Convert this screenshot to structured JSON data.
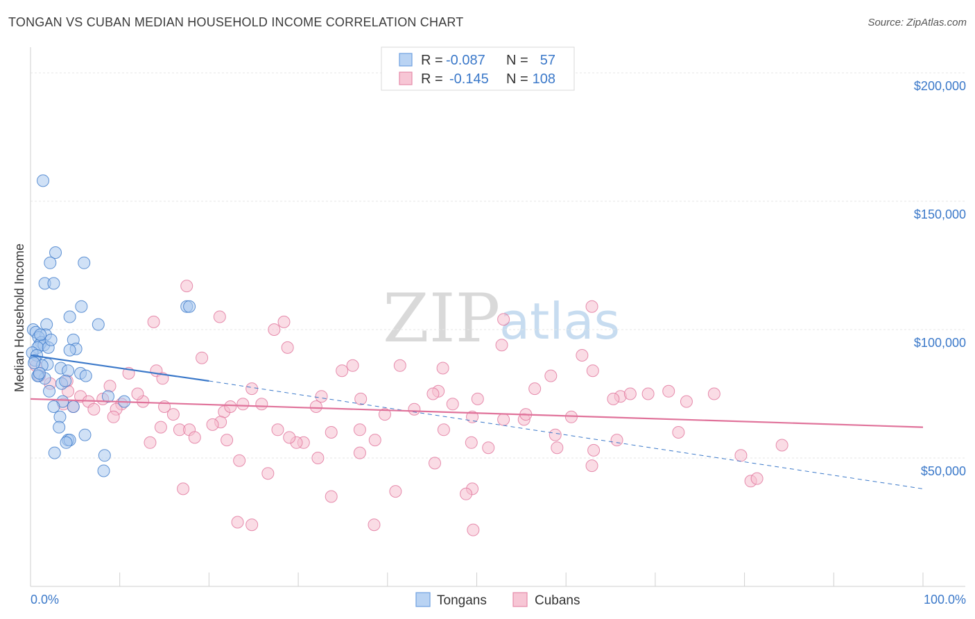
{
  "header": {
    "title": "TONGAN VS CUBAN MEDIAN HOUSEHOLD INCOME CORRELATION CHART",
    "source": "Source: ZipAtlas.com"
  },
  "watermark": {
    "zip": "ZIP",
    "atlas": "atlas"
  },
  "legend": {
    "rows": [
      {
        "r_label": "R =",
        "r_value": "-0.087",
        "n_label": "N =",
        "n_value": "57",
        "color": "#6fa0e0",
        "fill": "#b9d3f3"
      },
      {
        "r_label": "R =",
        "r_value": "-0.145",
        "n_label": "N =",
        "n_value": "108",
        "color": "#e58aa9",
        "fill": "#f7c6d5"
      }
    ]
  },
  "bottom_legend": {
    "series1": "Tongans",
    "series2": "Cubans"
  },
  "chart_data": {
    "type": "scatter",
    "title": "TONGAN VS CUBAN MEDIAN HOUSEHOLD INCOME CORRELATION CHART",
    "xlabel": "",
    "ylabel": "Median Household Income",
    "xlim": [
      0,
      100
    ],
    "ylim": [
      0,
      210000
    ],
    "x_tick_labels": {
      "left": "0.0%",
      "right": "100.0%"
    },
    "y_ticks": [
      {
        "value": 50000,
        "label": "$50,000"
      },
      {
        "value": 100000,
        "label": "$100,000"
      },
      {
        "value": 150000,
        "label": "$150,000"
      },
      {
        "value": 200000,
        "label": "$200,000"
      }
    ],
    "series": [
      {
        "name": "Tongans",
        "color": "#3a78c9",
        "fill": "#aac8ef",
        "trend": {
          "solid": [
            [
              0,
              90000
            ],
            [
              20,
              80000
            ]
          ],
          "dashed": [
            [
              20,
              80000
            ],
            [
              100,
              38000
            ]
          ]
        },
        "points": [
          [
            1.4,
            158000
          ],
          [
            2.8,
            130000
          ],
          [
            2.2,
            126000
          ],
          [
            6.0,
            126000
          ],
          [
            1.6,
            118000
          ],
          [
            2.6,
            118000
          ],
          [
            5.7,
            109000
          ],
          [
            17.5,
            109000
          ],
          [
            17.8,
            109000
          ],
          [
            4.4,
            105000
          ],
          [
            1.8,
            102000
          ],
          [
            7.6,
            102000
          ],
          [
            0.3,
            100000
          ],
          [
            0.6,
            99000
          ],
          [
            1.7,
            98000
          ],
          [
            0.9,
            97000
          ],
          [
            4.8,
            96000
          ],
          [
            1.2,
            95000
          ],
          [
            1.0,
            94000
          ],
          [
            1.5,
            94000
          ],
          [
            0.8,
            93000
          ],
          [
            2.0,
            93000
          ],
          [
            5.1,
            92500
          ],
          [
            4.4,
            92000
          ],
          [
            0.2,
            91000
          ],
          [
            0.7,
            90000
          ],
          [
            0.5,
            88000
          ],
          [
            1.9,
            86500
          ],
          [
            1.3,
            86000
          ],
          [
            3.4,
            85000
          ],
          [
            4.2,
            84000
          ],
          [
            5.6,
            83000
          ],
          [
            6.2,
            82000
          ],
          [
            0.9,
            82000
          ],
          [
            1.6,
            81000
          ],
          [
            3.5,
            79000
          ],
          [
            2.1,
            76000
          ],
          [
            8.7,
            74000
          ],
          [
            10.5,
            72000
          ],
          [
            3.6,
            72000
          ],
          [
            2.6,
            70000
          ],
          [
            4.8,
            70000
          ],
          [
            3.3,
            66000
          ],
          [
            3.2,
            62000
          ],
          [
            6.1,
            59000
          ],
          [
            4.2,
            57000
          ],
          [
            4.4,
            57000
          ],
          [
            4.0,
            56000
          ],
          [
            2.7,
            52000
          ],
          [
            8.3,
            51000
          ],
          [
            8.2,
            45000
          ],
          [
            0.8,
            82000
          ],
          [
            1.1,
            98000
          ],
          [
            2.3,
            96000
          ],
          [
            1.0,
            83000
          ],
          [
            3.9,
            80000
          ],
          [
            0.4,
            87000
          ]
        ]
      },
      {
        "name": "Cubans",
        "color": "#e0729a",
        "fill": "#f6bfd0",
        "trend": {
          "solid": [
            [
              0,
              73000
            ],
            [
              100,
              62000
            ]
          ]
        },
        "points": [
          [
            17.5,
            117000
          ],
          [
            62.9,
            109000
          ],
          [
            21.2,
            105000
          ],
          [
            13.8,
            103000
          ],
          [
            28.4,
            103000
          ],
          [
            53.0,
            104000
          ],
          [
            27.3,
            100000
          ],
          [
            28.8,
            93000
          ],
          [
            52.8,
            94000
          ],
          [
            61.8,
            90000
          ],
          [
            19.2,
            89000
          ],
          [
            36.1,
            86000
          ],
          [
            46.2,
            85000
          ],
          [
            34.9,
            84000
          ],
          [
            11.0,
            83000
          ],
          [
            14.1,
            84000
          ],
          [
            63.0,
            84000
          ],
          [
            58.3,
            82000
          ],
          [
            4.1,
            80000
          ],
          [
            14.8,
            81000
          ],
          [
            0.6,
            86000
          ],
          [
            1.0,
            82000
          ],
          [
            2.2,
            79000
          ],
          [
            24.8,
            77000
          ],
          [
            45.7,
            76000
          ],
          [
            45.1,
            75000
          ],
          [
            32.6,
            74000
          ],
          [
            37.0,
            73000
          ],
          [
            66.1,
            74000
          ],
          [
            65.3,
            73000
          ],
          [
            67.2,
            75000
          ],
          [
            69.2,
            75000
          ],
          [
            4.2,
            76000
          ],
          [
            5.6,
            74000
          ],
          [
            8.1,
            73000
          ],
          [
            6.5,
            72000
          ],
          [
            10.2,
            71000
          ],
          [
            12.6,
            72000
          ],
          [
            15.0,
            70000
          ],
          [
            23.8,
            71000
          ],
          [
            25.9,
            71000
          ],
          [
            32.0,
            70000
          ],
          [
            43.0,
            69000
          ],
          [
            47.3,
            71000
          ],
          [
            3.7,
            71000
          ],
          [
            4.8,
            70000
          ],
          [
            7.1,
            69000
          ],
          [
            9.6,
            69000
          ],
          [
            21.7,
            68000
          ],
          [
            39.7,
            67000
          ],
          [
            49.5,
            66000
          ],
          [
            53.0,
            65000
          ],
          [
            55.3,
            65000
          ],
          [
            60.6,
            66000
          ],
          [
            9.3,
            66000
          ],
          [
            16.0,
            67000
          ],
          [
            21.3,
            64000
          ],
          [
            27.7,
            61000
          ],
          [
            36.9,
            61000
          ],
          [
            30.6,
            56000
          ],
          [
            20.4,
            63000
          ],
          [
            14.6,
            62000
          ],
          [
            16.7,
            61000
          ],
          [
            17.8,
            61000
          ],
          [
            18.4,
            58000
          ],
          [
            33.7,
            60000
          ],
          [
            46.3,
            61000
          ],
          [
            58.8,
            59000
          ],
          [
            65.7,
            57000
          ],
          [
            13.4,
            56000
          ],
          [
            22.0,
            57000
          ],
          [
            29.8,
            56000
          ],
          [
            38.6,
            57000
          ],
          [
            49.4,
            56000
          ],
          [
            51.3,
            54000
          ],
          [
            59.0,
            54000
          ],
          [
            63.1,
            53000
          ],
          [
            79.6,
            51000
          ],
          [
            23.4,
            49000
          ],
          [
            32.2,
            50000
          ],
          [
            45.3,
            48000
          ],
          [
            62.9,
            47000
          ],
          [
            26.6,
            44000
          ],
          [
            17.1,
            38000
          ],
          [
            49.5,
            38000
          ],
          [
            40.9,
            37000
          ],
          [
            33.7,
            35000
          ],
          [
            48.8,
            36000
          ],
          [
            80.7,
            41000
          ],
          [
            81.4,
            42000
          ],
          [
            24.8,
            24000
          ],
          [
            38.5,
            24000
          ],
          [
            23.2,
            25000
          ],
          [
            49.6,
            22000
          ],
          [
            84.2,
            55000
          ],
          [
            72.6,
            60000
          ],
          [
            71.5,
            76000
          ],
          [
            73.5,
            72000
          ],
          [
            76.6,
            75000
          ],
          [
            56.5,
            77000
          ],
          [
            41.4,
            86000
          ],
          [
            50.1,
            73000
          ],
          [
            22.4,
            70000
          ],
          [
            12.0,
            75000
          ],
          [
            8.9,
            78000
          ],
          [
            55.5,
            67000
          ],
          [
            29.0,
            58000
          ],
          [
            36.9,
            52000
          ]
        ]
      }
    ]
  }
}
